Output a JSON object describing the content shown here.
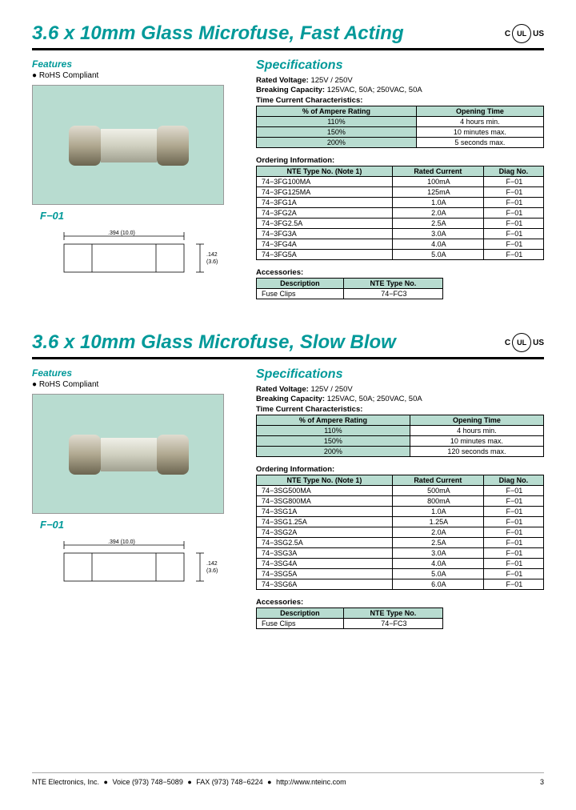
{
  "sections": [
    {
      "title": "3.6 x 10mm Glass Microfuse, Fast Acting",
      "ul_left": "C",
      "ul_center": "UL",
      "ul_right": "US",
      "features_header": "Features",
      "features_bullet": "● RoHS Compliant",
      "fig_label": "F−01",
      "dim_len": ".394 (10.0)",
      "dim_h": ".142",
      "dim_h2": "(3.6)",
      "spec_header": "Specifications",
      "spec_lines": [
        {
          "label": "Rated Voltage:",
          "val": "  125V / 250V"
        },
        {
          "label": "Breaking Capacity:",
          "val": "  125VAC, 50A; 250VAC, 50A"
        }
      ],
      "tcc_header": "Time Current Characteristics:",
      "tcc_cols": [
        "% of Ampere Rating",
        "Opening Time"
      ],
      "tcc_rows": [
        [
          "110%",
          "4 hours min."
        ],
        [
          "150%",
          "10 minutes max."
        ],
        [
          "200%",
          "5 seconds max."
        ]
      ],
      "ord_header": "Ordering Information:",
      "ord_cols": [
        "NTE Type No. (Note 1)",
        "Rated Current",
        "Diag No."
      ],
      "ord_rows": [
        [
          "74−3FG100MA",
          "100mA",
          "F−01"
        ],
        [
          "74−3FG125MA",
          "125mA",
          "F−01"
        ],
        [
          "74−3FG1A",
          "1.0A",
          "F−01"
        ],
        [
          "74−3FG2A",
          "2.0A",
          "F−01"
        ],
        [
          "74−3FG2.5A",
          "2.5A",
          "F−01"
        ],
        [
          "74−3FG3A",
          "3.0A",
          "F−01"
        ],
        [
          "74−3FG4A",
          "4.0A",
          "F−01"
        ],
        [
          "74−3FG5A",
          "5.0A",
          "F−01"
        ]
      ],
      "acc_header": "Accessories:",
      "acc_cols": [
        "Description",
        "NTE Type No."
      ],
      "acc_rows": [
        [
          "Fuse Clips",
          "74−FC3"
        ]
      ]
    },
    {
      "title": "3.6 x 10mm Glass Microfuse, Slow Blow",
      "ul_left": "C",
      "ul_center": "UL",
      "ul_right": "US",
      "features_header": "Features",
      "features_bullet": "● RoHS Compliant",
      "fig_label": "F−01",
      "dim_len": ".394 (10.0)",
      "dim_h": ".142",
      "dim_h2": "(3.6)",
      "spec_header": "Specifications",
      "spec_lines": [
        {
          "label": "Rated Voltage:",
          "val": "  125V / 250V"
        },
        {
          "label": "Breaking Capacity:",
          "val": "  125VAC, 50A; 250VAC, 50A"
        }
      ],
      "tcc_header": "Time Current Characteristics:",
      "tcc_cols": [
        "% of Ampere Rating",
        "Opening Time"
      ],
      "tcc_rows": [
        [
          "110%",
          "4 hours min."
        ],
        [
          "150%",
          "10 minutes max."
        ],
        [
          "200%",
          "120 seconds max."
        ]
      ],
      "ord_header": "Ordering Information:",
      "ord_cols": [
        "NTE Type No. (Note 1)",
        "Rated Current",
        "Diag No."
      ],
      "ord_rows": [
        [
          "74−3SG500MA",
          "500mA",
          "F−01"
        ],
        [
          "74−3SG800MA",
          "800mA",
          "F−01"
        ],
        [
          "74−3SG1A",
          "1.0A",
          "F−01"
        ],
        [
          "74−3SG1.25A",
          "1.25A",
          "F−01"
        ],
        [
          "74−3SG2A",
          "2.0A",
          "F−01"
        ],
        [
          "74−3SG2.5A",
          "2.5A",
          "F−01"
        ],
        [
          "74−3SG3A",
          "3.0A",
          "F−01"
        ],
        [
          "74−3SG4A",
          "4.0A",
          "F−01"
        ],
        [
          "74−3SG5A",
          "5.0A",
          "F−01"
        ],
        [
          "74−3SG6A",
          "6.0A",
          "F−01"
        ]
      ],
      "acc_header": "Accessories:",
      "acc_cols": [
        "Description",
        "NTE Type No."
      ],
      "acc_rows": [
        [
          "Fuse Clips",
          "74−FC3"
        ]
      ]
    }
  ],
  "footer": {
    "company": "NTE Electronics, Inc.",
    "voice": "Voice (973) 748−5089",
    "fax": "FAX (973) 748−6224",
    "web": "http://www.nteinc.com",
    "page": "3"
  },
  "colors": {
    "accent": "#009999",
    "photo_bg": "#b8dcd0",
    "table_header_bg": "#b8dcd0"
  }
}
